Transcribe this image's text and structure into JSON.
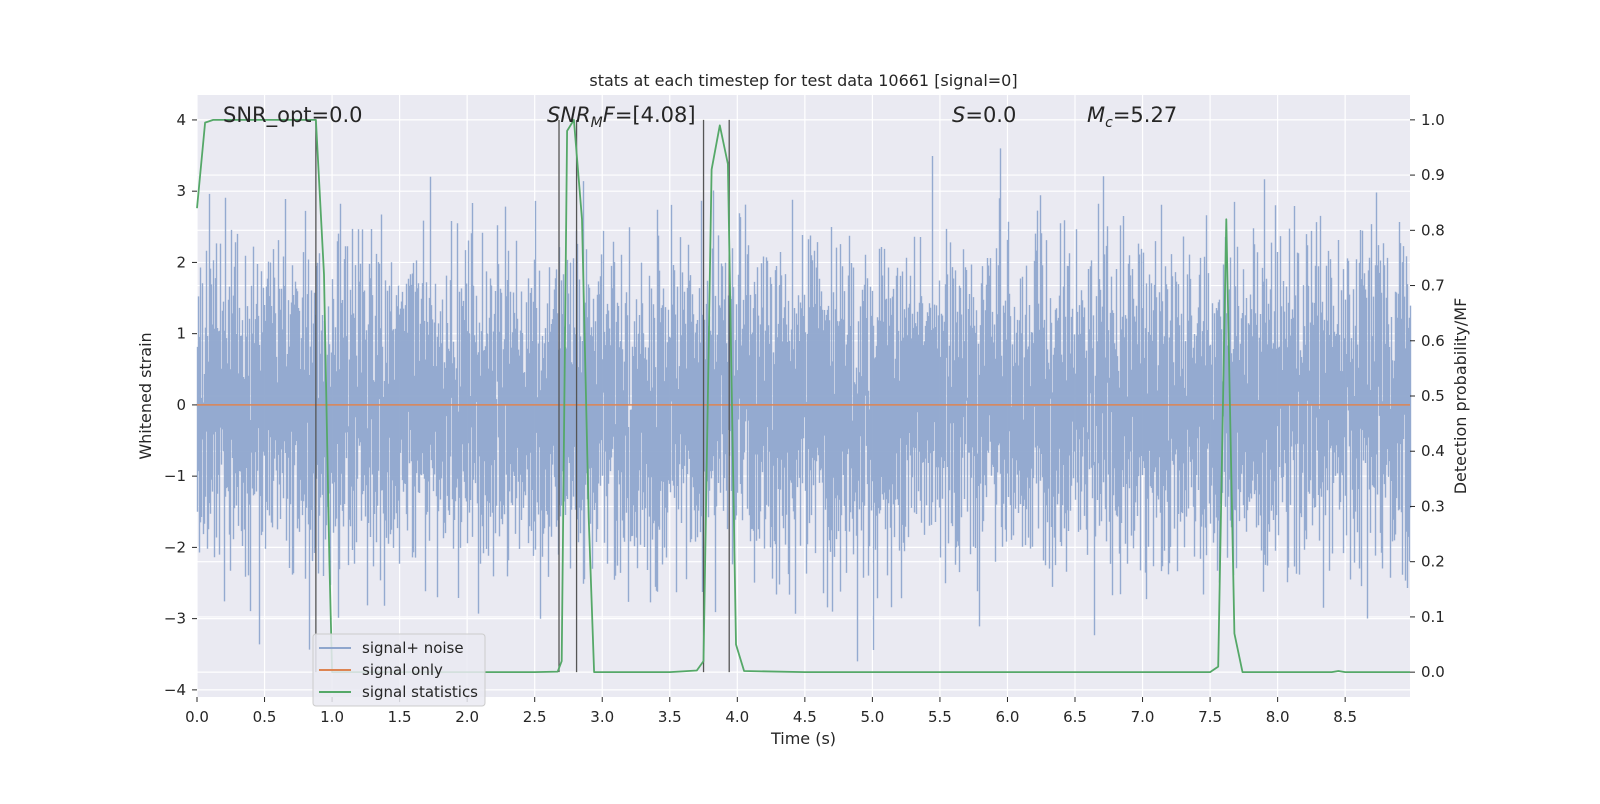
{
  "chart_data": {
    "type": "line",
    "title": "stats at each timestep for test data 10661 [signal=0]",
    "xlabel": "Time (s)",
    "ylabel": "Whitened strain",
    "y2label": "Detection probability/MF",
    "xlim": [
      0.0,
      8.98
    ],
    "ylim": [
      -4.1,
      4.35
    ],
    "y2lim": [
      -0.045,
      1.045
    ],
    "x_ticks": [
      "0.0",
      "0.5",
      "1.0",
      "1.5",
      "2.0",
      "2.5",
      "3.0",
      "3.5",
      "4.0",
      "4.5",
      "5.0",
      "5.5",
      "6.0",
      "6.5",
      "7.0",
      "7.5",
      "8.0",
      "8.5"
    ],
    "y_ticks": [
      "4",
      "3",
      "2",
      "1",
      "0",
      "−1",
      "−2",
      "−3",
      "−4"
    ],
    "y2_ticks": [
      "1.0",
      "0.9",
      "0.8",
      "0.7",
      "0.6",
      "0.5",
      "0.4",
      "0.3",
      "0.2",
      "0.1",
      "0.0"
    ],
    "grid": true,
    "legend_position": "lower-left",
    "annotations": {
      "snr_opt": "SNR_opt=0.0",
      "snr_mf_prefix": "SNR",
      "snr_mf_sub": "M",
      "snr_mf_suffix": "F=[4.08]",
      "s_var": "S",
      "s_value": "=0.0",
      "mc_var": "M",
      "mc_sub": "c",
      "mc_value": "=5.27"
    },
    "vertical_markers": [
      0.88,
      2.68,
      2.81,
      3.75,
      3.94
    ],
    "series": [
      {
        "name": "signal+ noise",
        "color": "#8fa6cd",
        "noise_std": 0.75,
        "noise_peak": 3.6,
        "x_range": [
          0.0,
          8.98
        ]
      },
      {
        "name": "signal only",
        "color": "#dd8452",
        "x": [
          0.0,
          8.98
        ],
        "y": [
          0.0,
          0.0
        ]
      },
      {
        "name": "signal statistics",
        "color": "#55a868",
        "axis": "right",
        "x": [
          0.0,
          0.06,
          0.12,
          0.5,
          0.8,
          0.88,
          0.94,
          0.98,
          1.0,
          1.1,
          1.5,
          2.0,
          2.5,
          2.67,
          2.7,
          2.74,
          2.79,
          2.85,
          2.9,
          2.94,
          3.0,
          3.5,
          3.7,
          3.75,
          3.81,
          3.87,
          3.93,
          3.99,
          4.05,
          4.5,
          5.0,
          6.0,
          7.0,
          7.5,
          7.56,
          7.62,
          7.68,
          7.74,
          8.0,
          8.4,
          8.45,
          8.5,
          8.98
        ],
        "y": [
          0.84,
          0.995,
          1.0,
          1.0,
          1.0,
          1.0,
          0.72,
          0.2,
          0.0,
          0.0,
          0.0,
          0.0,
          0.0,
          0.001,
          0.02,
          0.98,
          1.0,
          0.82,
          0.28,
          0.0,
          0.0,
          0.0,
          0.003,
          0.02,
          0.91,
          0.99,
          0.92,
          0.05,
          0.002,
          0.0,
          0.0,
          0.0,
          0.0,
          0.0,
          0.01,
          0.82,
          0.07,
          0.0,
          0.0,
          0.0,
          0.002,
          0.0,
          0.0
        ]
      }
    ]
  }
}
